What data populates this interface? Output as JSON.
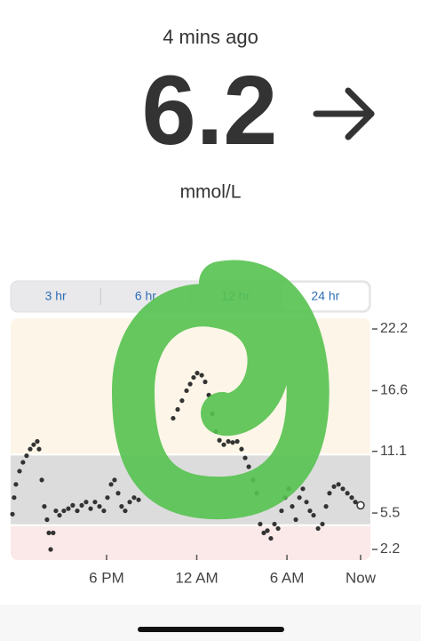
{
  "header": {
    "status": "4 mins ago",
    "reading": 6.2,
    "unit": "mmol/L"
  },
  "tabs": {
    "items": [
      "3 hr",
      "6 hr",
      "12 hr",
      "24 hr"
    ],
    "selected": 3
  },
  "chart_data": {
    "type": "scatter",
    "x": [
      -0.26,
      -0.15,
      -0.03,
      0.21,
      0.44,
      0.68,
      0.92,
      1.15,
      1.39,
      1.51,
      1.69,
      1.86,
      2.04,
      2.16,
      2.28,
      2.45,
      2.63,
      2.87,
      3.16,
      3.46,
      3.75,
      4.05,
      4.35,
      4.64,
      4.94,
      5.23,
      5.53,
      5.82,
      6.06,
      6.3,
      6.53,
      6.77,
      7.0,
      7.24,
      7.54,
      7.83,
      8.13,
      10.43,
      10.73,
      11.02,
      11.32,
      11.56,
      11.79,
      12.03,
      12.33,
      12.56,
      12.8,
      13.03,
      13.27,
      13.51,
      13.8,
      14.1,
      14.39,
      14.69,
      14.98,
      15.22,
      15.46,
      15.75,
      15.99,
      16.22,
      16.46,
      16.7,
      16.93,
      17.17,
      17.41,
      17.64,
      17.88,
      18.12,
      18.35,
      18.59,
      18.83,
      19.06,
      19.3,
      19.53,
      19.77,
      20.07,
      20.36,
      20.6,
      20.83,
      21.13,
      21.43,
      21.72,
      22.02,
      22.31,
      22.55,
      22.9
    ],
    "values": [
      5.4,
      6.9,
      8.1,
      9.3,
      10.1,
      10.7,
      11.3,
      11.7,
      12.0,
      11.3,
      8.5,
      6.1,
      4.9,
      3.7,
      2.2,
      3.7,
      5.7,
      5.3,
      5.7,
      5.9,
      6.2,
      5.7,
      6.2,
      6.5,
      5.9,
      6.5,
      6.1,
      5.7,
      6.9,
      8.1,
      8.5,
      7.3,
      6.1,
      5.7,
      6.5,
      6.9,
      6.7,
      14.1,
      14.9,
      15.7,
      16.6,
      17.2,
      17.8,
      18.2,
      18.0,
      17.4,
      16.2,
      14.5,
      12.9,
      12.1,
      11.7,
      12.0,
      11.9,
      12.0,
      11.3,
      10.5,
      9.7,
      8.5,
      7.3,
      4.5,
      3.7,
      3.9,
      3.2,
      4.5,
      4.1,
      5.7,
      6.9,
      7.7,
      6.1,
      4.9,
      6.9,
      7.7,
      6.5,
      5.7,
      5.3,
      4.1,
      4.5,
      6.1,
      7.3,
      7.9,
      8.1,
      7.7,
      7.3,
      6.9,
      6.5,
      6.2
    ],
    "color": "#333333",
    "high": 10.8,
    "low": 4.4,
    "xlim": [
      -0.38,
      23.55
    ],
    "ylim": [
      1.23,
      23.17
    ],
    "xticks": [
      {
        "value": 6,
        "label": "6 PM"
      },
      {
        "value": 12,
        "label": "12 AM"
      },
      {
        "value": 18,
        "label": "6 AM"
      },
      {
        "value": 22.9,
        "label": "Now"
      }
    ],
    "yticks": [
      22.2,
      16.6,
      11.1,
      5.5,
      2.2
    ]
  }
}
